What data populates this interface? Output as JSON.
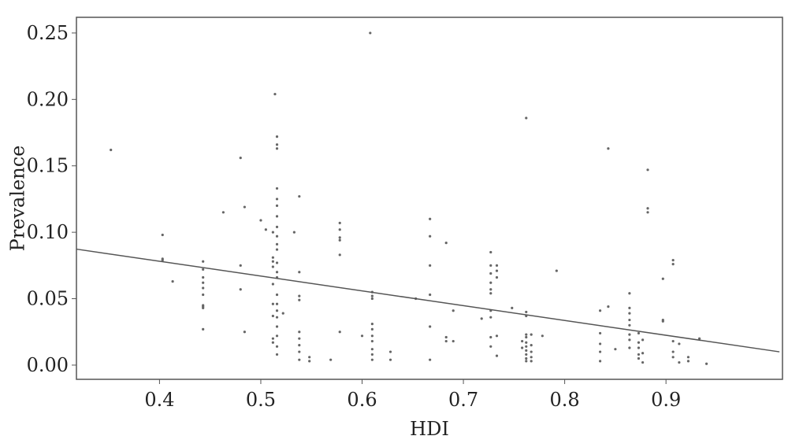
{
  "chart_data": {
    "type": "scatter",
    "x_label": "HDI",
    "y_label": "Prevalence",
    "xlim": [
      0.318,
      1.015
    ],
    "ylim": [
      -0.0107,
      0.2618
    ],
    "xticks": [
      0.4,
      0.5,
      0.6,
      0.7,
      0.8,
      0.9
    ],
    "yticks": [
      {
        "value": 0,
        "label": "0.00"
      },
      0.05,
      {
        "value": 0.1,
        "label": "0.10"
      },
      0.15,
      {
        "value": 0.2,
        "label": "0.20"
      },
      0.25
    ],
    "point_color": "#666666",
    "x": [
      0.352,
      0.403,
      0.403,
      0.403,
      0.413,
      0.443,
      0.443,
      0.443,
      0.443,
      0.443,
      0.443,
      0.443,
      0.443,
      0.443,
      0.443,
      0.463,
      0.48,
      0.48,
      0.48,
      0.484,
      0.484,
      0.5,
      0.505,
      0.512,
      0.512,
      0.512,
      0.512,
      0.512,
      0.512,
      0.512,
      0.512,
      0.512,
      0.514,
      0.516,
      0.516,
      0.516,
      0.516,
      0.516,
      0.516,
      0.516,
      0.516,
      0.516,
      0.516,
      0.516,
      0.516,
      0.516,
      0.516,
      0.516,
      0.516,
      0.516,
      0.516,
      0.516,
      0.516,
      0.516,
      0.516,
      0.522,
      0.533,
      0.538,
      0.538,
      0.538,
      0.538,
      0.538,
      0.538,
      0.538,
      0.538,
      0.538,
      0.548,
      0.548,
      0.569,
      0.578,
      0.578,
      0.578,
      0.578,
      0.578,
      0.578,
      0.6,
      0.608,
      0.61,
      0.61,
      0.61,
      0.61,
      0.61,
      0.61,
      0.61,
      0.61,
      0.61,
      0.61,
      0.628,
      0.628,
      0.653,
      0.667,
      0.667,
      0.667,
      0.667,
      0.667,
      0.667,
      0.683,
      0.683,
      0.683,
      0.69,
      0.69,
      0.718,
      0.727,
      0.727,
      0.727,
      0.727,
      0.727,
      0.727,
      0.727,
      0.727,
      0.727,
      0.727,
      0.733,
      0.733,
      0.733,
      0.733,
      0.733,
      0.748,
      0.758,
      0.758,
      0.762,
      0.762,
      0.762,
      0.762,
      0.762,
      0.762,
      0.762,
      0.762,
      0.762,
      0.762,
      0.762,
      0.767,
      0.767,
      0.767,
      0.767,
      0.767,
      0.778,
      0.792,
      0.835,
      0.835,
      0.835,
      0.835,
      0.835,
      0.843,
      0.843,
      0.85,
      0.864,
      0.864,
      0.864,
      0.864,
      0.864,
      0.864,
      0.864,
      0.864,
      0.873,
      0.873,
      0.873,
      0.873,
      0.873,
      0.877,
      0.877,
      0.877,
      0.882,
      0.882,
      0.882,
      0.897,
      0.897,
      0.897,
      0.907,
      0.907,
      0.907,
      0.907,
      0.907,
      0.913,
      0.913,
      0.922,
      0.922,
      0.933,
      0.94
    ],
    "values": [
      0.162,
      0.098,
      0.08,
      0.079,
      0.063,
      0.078,
      0.072,
      0.066,
      0.062,
      0.058,
      0.053,
      0.045,
      0.043,
      0.027,
      0.044,
      0.115,
      0.156,
      0.075,
      0.057,
      0.119,
      0.025,
      0.109,
      0.102,
      0.1,
      0.081,
      0.078,
      0.074,
      0.061,
      0.046,
      0.037,
      0.02,
      0.017,
      0.204,
      0.172,
      0.166,
      0.163,
      0.133,
      0.125,
      0.12,
      0.112,
      0.104,
      0.097,
      0.091,
      0.087,
      0.077,
      0.07,
      0.066,
      0.053,
      0.046,
      0.041,
      0.036,
      0.029,
      0.022,
      0.014,
      0.008,
      0.039,
      0.1,
      0.127,
      0.07,
      0.052,
      0.049,
      0.025,
      0.02,
      0.015,
      0.01,
      0.004,
      0.006,
      0.003,
      0.004,
      0.107,
      0.102,
      0.096,
      0.094,
      0.083,
      0.025,
      0.022,
      0.25,
      0.055,
      0.052,
      0.05,
      0.031,
      0.027,
      0.022,
      0.018,
      0.012,
      0.008,
      0.004,
      0.01,
      0.004,
      0.05,
      0.11,
      0.097,
      0.075,
      0.053,
      0.029,
      0.004,
      0.092,
      0.021,
      0.018,
      0.041,
      0.018,
      0.035,
      0.085,
      0.075,
      0.069,
      0.062,
      0.057,
      0.054,
      0.041,
      0.036,
      0.021,
      0.014,
      0.075,
      0.071,
      0.066,
      0.022,
      0.007,
      0.043,
      0.018,
      0.013,
      0.186,
      0.04,
      0.037,
      0.023,
      0.021,
      0.017,
      0.014,
      0.011,
      0.008,
      0.005,
      0.003,
      0.023,
      0.015,
      0.01,
      0.006,
      0.003,
      0.022,
      0.071,
      0.041,
      0.024,
      0.016,
      0.01,
      0.003,
      0.163,
      0.044,
      0.012,
      0.054,
      0.043,
      0.039,
      0.034,
      0.03,
      0.023,
      0.019,
      0.013,
      0.024,
      0.017,
      0.013,
      0.008,
      0.005,
      0.019,
      0.009,
      0.002,
      0.147,
      0.118,
      0.115,
      0.065,
      0.034,
      0.033,
      0.079,
      0.076,
      0.018,
      0.01,
      0.006,
      0.016,
      0.002,
      0.006,
      0.003,
      0.02,
      0.001
    ],
    "fit_line": {
      "color": "#555555",
      "x": [
        0.318,
        1.012
      ],
      "values": [
        0.0873,
        0.01
      ]
    }
  }
}
